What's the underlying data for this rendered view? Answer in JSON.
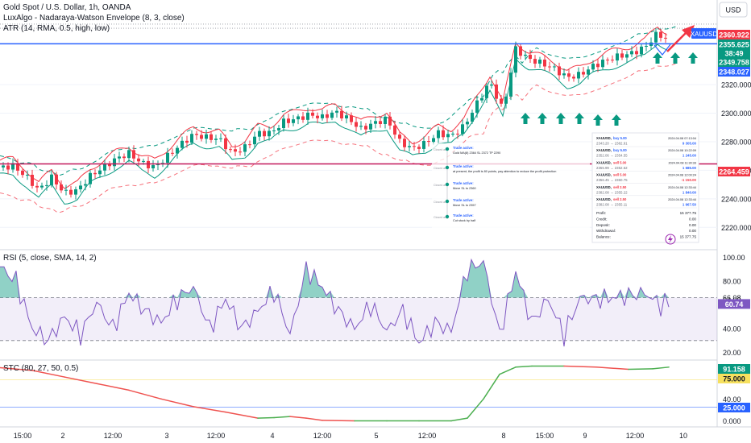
{
  "main_pane": {
    "title": "Gold Spot / U.S. Dollar, 1h, OANDA",
    "indicators": [
      "LuxAlgo - Nadaraya-Watson Envelope (8, 3, close)",
      "ATR (14, RMA, 0.5, high, low)"
    ],
    "currency_button": "USD",
    "symbol_badge": "XAUUSD",
    "price_badges": [
      {
        "text": "2360.922",
        "value": 2360.922,
        "color": "#f23645"
      },
      {
        "text": "2355.625",
        "value": 2355.625,
        "color": "#089981"
      },
      {
        "text": "38:49",
        "value": 2352.4,
        "color": "#089981"
      },
      {
        "text": "2349.758",
        "value": 2349.758,
        "color": "#089981"
      },
      {
        "text": "2348.027",
        "value": 2348.027,
        "color": "#2962ff"
      },
      {
        "text": "2264.459",
        "value": 2264.459,
        "color": "#f23645"
      }
    ],
    "y_ticks": [
      "2320.000",
      "2300.000",
      "2280.000",
      "2260.000",
      "2240.000",
      "2220.000"
    ],
    "y_tick_values": [
      2320,
      2300,
      2280,
      2260,
      2240,
      2220
    ]
  },
  "chart_data": [
    {
      "type": "line",
      "title": "Gold Spot / U.S. Dollar, 1h, OANDA",
      "ylim": [
        2210,
        2368
      ],
      "x": [
        0,
        16,
        32,
        48,
        64,
        80,
        96,
        112,
        128,
        144,
        160,
        176,
        192,
        208,
        224,
        240,
        256,
        272,
        288,
        304,
        320,
        336,
        352,
        368,
        384,
        400,
        416,
        432,
        448,
        464,
        480,
        496,
        512,
        528,
        544,
        560,
        576,
        592,
        608,
        624,
        640,
        656,
        672,
        688,
        704,
        720,
        736,
        752,
        768,
        784,
        800,
        816,
        832
      ],
      "series": [
        {
          "values": [
            2262,
            2263,
            2256,
            2246,
            2255,
            2244,
            2246,
            2256,
            2262,
            2268,
            2272,
            2265,
            2262,
            2270,
            2278,
            2285,
            2283,
            2282,
            2272,
            2276,
            2286,
            2286,
            2294,
            2296,
            2299,
            2297,
            2301,
            2296,
            2289,
            2293,
            2296,
            2280,
            2275,
            2279,
            2286,
            2284,
            2291,
            2307,
            2322,
            2302,
            2345,
            2338,
            2335,
            2331,
            2325,
            2327,
            2333,
            2337,
            2340,
            2342,
            2346,
            2356,
            2350
          ]
        }
      ]
    },
    {
      "type": "line",
      "title": "RSI (5, close, SMA, 14, 2)",
      "ylim": [
        15,
        105
      ],
      "x": [
        0,
        20,
        40,
        60,
        80,
        100,
        120,
        140,
        160,
        180,
        200,
        220,
        240,
        260,
        280,
        300,
        320,
        340,
        360,
        380,
        400,
        420,
        440,
        460,
        480,
        500,
        520,
        540,
        560,
        580,
        600,
        620,
        640,
        660,
        680,
        700,
        720,
        740,
        760,
        780,
        800,
        820,
        830
      ],
      "series": [
        {
          "values": [
            92,
            80,
            40,
            30,
            50,
            35,
            62,
            40,
            70,
            55,
            45,
            65,
            75,
            40,
            65,
            40,
            55,
            72,
            35,
            90,
            75,
            55,
            40,
            60,
            38,
            55,
            28,
            45,
            38,
            90,
            96,
            35,
            88,
            45,
            65,
            35,
            66,
            65,
            66,
            68,
            70,
            60,
            62
          ]
        }
      ],
      "y_ticks": [
        "100.00",
        "80.00",
        "66.08",
        "64.20",
        "40.00",
        "20.00"
      ],
      "y_tick_values": [
        100,
        80,
        66.08,
        64.2,
        40,
        20
      ],
      "badge": {
        "text": "60.74",
        "value": 60.74
      }
    },
    {
      "type": "line",
      "title": "STC (80, 27, 50, 0.5)",
      "ylim": [
        -8,
        108
      ],
      "x": [
        0,
        40,
        80,
        120,
        160,
        200,
        240,
        280,
        320,
        340,
        360,
        380,
        400,
        440,
        480,
        520,
        560,
        580,
        600,
        620,
        640,
        660,
        700,
        740,
        780,
        810,
        830
      ],
      "series": [
        {
          "values": [
            97,
            92,
            80,
            68,
            56,
            40,
            26,
            16,
            5,
            6,
            8,
            5,
            1,
            0,
            0,
            0,
            0,
            5,
            40,
            85,
            98,
            100,
            100,
            98,
            94,
            95,
            98
          ]
        }
      ],
      "y_ticks": [
        "75.00",
        "40.00",
        "25.00",
        "0.000"
      ],
      "y_tick_values": [
        75,
        40,
        25,
        0
      ],
      "badges": [
        {
          "text": "91.158",
          "value": 91.158,
          "color": "#089981"
        },
        {
          "text": "75.000",
          "value": 75,
          "color": "#f6e05e"
        },
        {
          "text": "25.000",
          "value": 25,
          "color": "#2962ff"
        }
      ]
    }
  ],
  "x_axis": {
    "labels": [
      "15:00",
      "2",
      "12:00",
      "3",
      "12:00",
      "4",
      "12:00",
      "5",
      "12:00",
      "8",
      "15:00",
      "9",
      "12:00",
      "10"
    ],
    "positions": [
      28,
      78,
      140,
      207,
      268,
      338,
      400,
      467,
      530,
      625,
      676,
      726,
      788,
      848
    ]
  },
  "rsi_pane": {
    "title": "RSI (5, close, SMA, 14, 2)"
  },
  "stc_pane": {
    "title": "STC (80, 27, 50, 0.5)"
  },
  "trade_log": [
    {
      "time": "Closed at",
      "title": "Trade active:",
      "text": "Gold MA(8) 2364 SL 2372 TP 2290"
    },
    {
      "time": "Closed at",
      "title": "Trade active:",
      "text": "at present, the profit is 80 points, pay attention to reduce the profit protection"
    },
    {
      "time": "Closed at",
      "title": "Trade active:",
      "text": "Move SL to 2360"
    },
    {
      "time": "Closed at",
      "title": "Trade active:",
      "text": "Move SL to 2357"
    },
    {
      "time": "Closed at",
      "title": "Trade active:",
      "text": "Cut stock by half"
    }
  ],
  "account_panel": {
    "orders": [
      {
        "symbol": "XAUUSD,",
        "side": "buy 5.00",
        "date": "2024.04.08 07:13:04",
        "prices": "2343.20 → 2382.91",
        "profit": "9 305.00"
      },
      {
        "symbol": "XAUUSD,",
        "side": "buy 5.00",
        "date": "2024.04.08 10:22:09",
        "prices": "2352.06 → 2354.55",
        "profit": "1 245.00"
      },
      {
        "symbol": "XAUUSD,",
        "side": "sell 5.00",
        "date": "2024.04.08 11:30:33",
        "prices": "2355.99 → 2352.62",
        "profit": "1 685.00"
      },
      {
        "symbol": "XAUUSD,",
        "side": "sell 5.00",
        "date": "2024.04.08 12:00:24",
        "prices": "2356.45 → 2360.75",
        "profit": "-1 150.00"
      },
      {
        "symbol": "XAUUSD,",
        "side": "sell 2.50",
        "date": "2024.04.08 12:33:44",
        "prices": "2382.08 → 2355.22",
        "profit": "1 840.00"
      },
      {
        "symbol": "XAUUSD,",
        "side": "sell 2.50",
        "date": "2024.04.08 12:33:44",
        "prices": "2382.08 → 2355.11",
        "profit": "1 967.50"
      }
    ],
    "summary": [
      {
        "label": "Profit:",
        "value": "15 377.75"
      },
      {
        "label": "Credit:",
        "value": "0.00"
      },
      {
        "label": "Deposit:",
        "value": "0.00"
      },
      {
        "label": "Withdrawal:",
        "value": "0.00"
      },
      {
        "label": "Balance:",
        "value": "15 377.75"
      }
    ]
  },
  "colors": {
    "up": "#089981",
    "down": "#f23645",
    "envelope": "#f23645",
    "atr": "#089981",
    "rsi": "#7e57c2",
    "level_blue": "#2962ff",
    "support_red": "#c2185b"
  }
}
